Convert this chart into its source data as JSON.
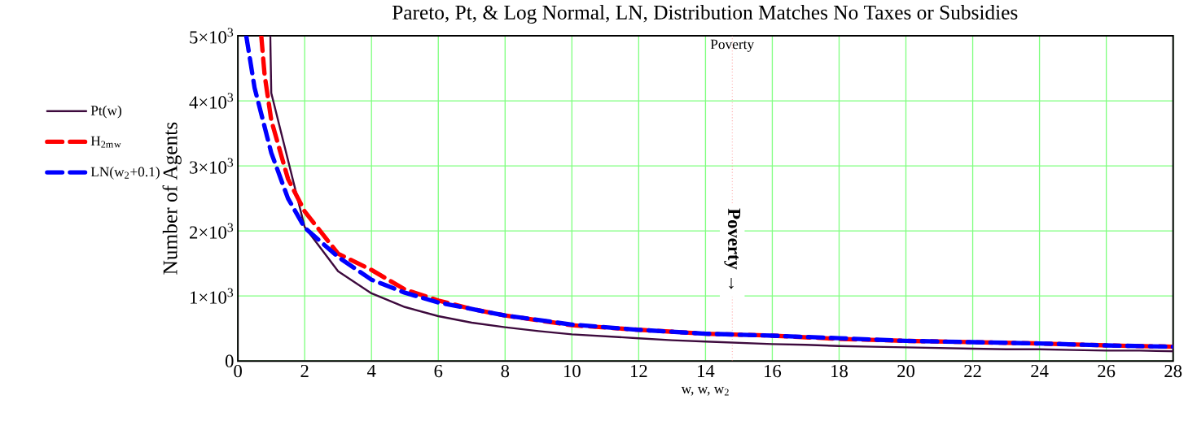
{
  "chart_data": {
    "type": "line",
    "title": "Pareto, Pt, & Log Normal, LN, Distribution Matches No Taxes or Subsidies",
    "xlabel": "w, w, w$_{2}$",
    "ylabel": "Number of Agents",
    "xlim": [
      0,
      28
    ],
    "ylim": [
      0,
      5000
    ],
    "xticks": [
      0,
      2,
      4,
      6,
      8,
      10,
      12,
      14,
      16,
      18,
      20,
      22,
      24,
      26,
      28
    ],
    "yticks": [
      0,
      {
        "value": 1000,
        "label": "1×10$^{3}$"
      },
      {
        "value": 2000,
        "label": "2×10$^{3}$"
      },
      {
        "value": 3000,
        "label": "3×10$^{3}$"
      },
      {
        "value": 4000,
        "label": "4×10$^{3}$"
      },
      {
        "value": 5000,
        "label": "5×10$^{3}$"
      }
    ],
    "grid": true,
    "legend": "left",
    "series": [
      {
        "name": "Pt(w)",
        "color": "#3d0a3d",
        "line_style": "solid",
        "x": [
          0.97,
          1,
          2,
          3,
          4,
          5,
          6,
          7,
          8,
          9,
          10,
          11,
          12,
          13,
          14,
          15,
          16,
          17,
          18,
          19,
          20,
          21,
          22,
          23,
          24,
          25,
          26,
          27,
          28
        ],
        "values": [
          5000,
          4120,
          2060,
          1380,
          1040,
          830,
          690,
          590,
          520,
          460,
          410,
          380,
          350,
          320,
          300,
          280,
          260,
          250,
          230,
          220,
          210,
          200,
          190,
          180,
          180,
          170,
          160,
          160,
          150
        ]
      },
      {
        "name": "H$_{2m}$$_{w}$",
        "color": "#ff0000",
        "line_style": "dashed",
        "x": [
          0.7,
          0.8,
          1,
          1.5,
          2,
          3,
          4,
          5,
          6,
          7,
          8,
          10,
          12,
          14,
          16,
          18,
          20,
          22,
          24,
          26,
          28
        ],
        "values": [
          5000,
          4400,
          3700,
          2800,
          2300,
          1650,
          1400,
          1100,
          930,
          800,
          700,
          550,
          480,
          420,
          390,
          340,
          310,
          290,
          270,
          240,
          220
        ]
      },
      {
        "name": "LN(w$_{2}$+0.1)",
        "color": "#0000ff",
        "line_style": "dashed",
        "x": [
          0.25,
          0.5,
          1,
          1.5,
          2,
          3,
          4,
          5,
          6,
          7,
          8,
          10,
          12,
          14,
          16,
          18,
          20,
          22,
          24,
          26,
          28
        ],
        "values": [
          5000,
          4200,
          3200,
          2500,
          2050,
          1600,
          1250,
          1050,
          900,
          800,
          700,
          560,
          480,
          420,
          390,
          350,
          310,
          290,
          270,
          240,
          220
        ]
      }
    ],
    "ref_lines": [
      {
        "axis": "x",
        "value": 14.8,
        "label": "Poverty",
        "color": "#ff8080",
        "line_style": "dotted"
      }
    ],
    "annotations": [
      {
        "text": "**Poverty →**",
        "x": 14.8,
        "y": 1700
      }
    ]
  }
}
